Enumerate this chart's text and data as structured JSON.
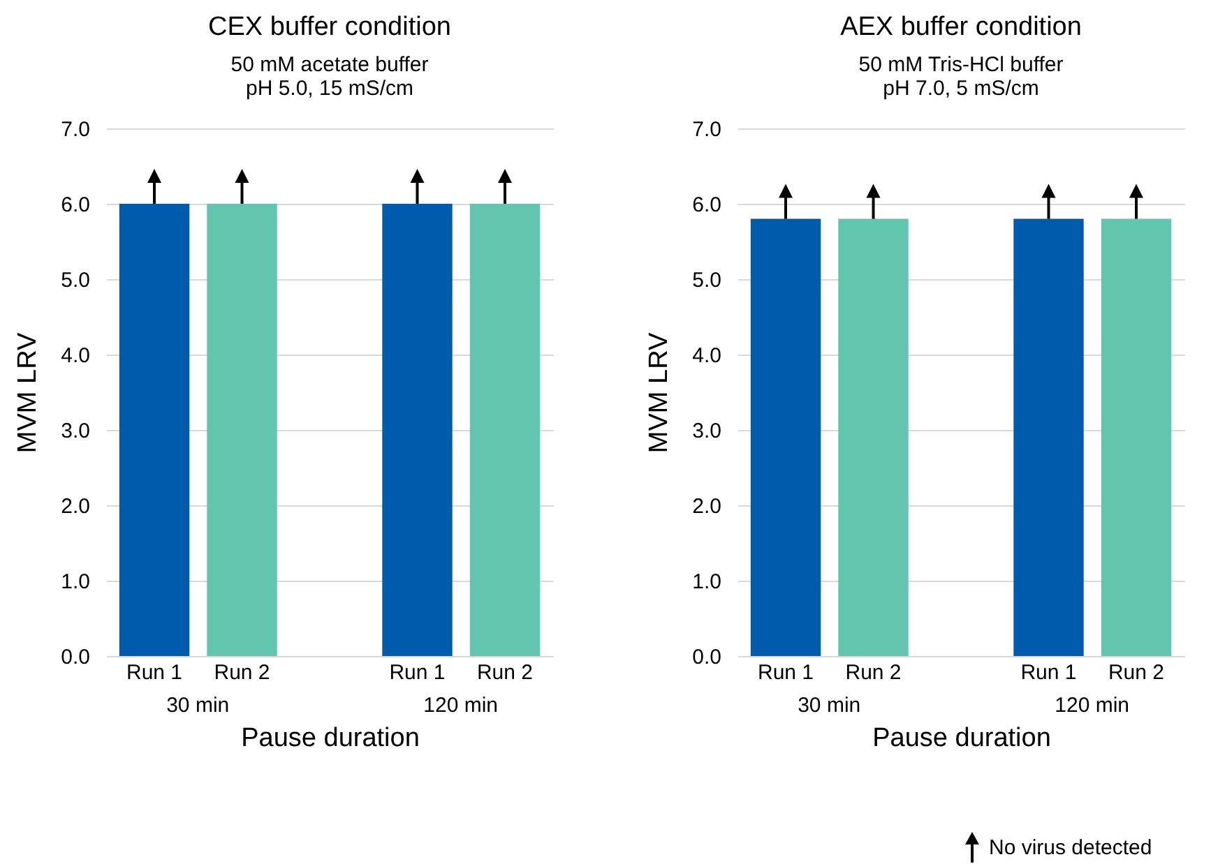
{
  "chart_data": [
    {
      "type": "bar",
      "title": "CEX buffer condition",
      "subtitle": "50 mM acetate buffer\npH 5.0, 15 mS/cm",
      "xlabel": "Pause duration",
      "ylabel": "MVM LRV",
      "categories": [
        "Run 1",
        "Run 2",
        "Run 1",
        "Run 2"
      ],
      "values": [
        6.0,
        6.0,
        6.0,
        6.0
      ],
      "colors": [
        "#005bac",
        "#62c5ae",
        "#005bac",
        "#62c5ae"
      ],
      "ylim": [
        0,
        7
      ],
      "yticks": [
        {
          "value": 0,
          "label": "0.0"
        },
        {
          "value": 1,
          "label": "1.0"
        },
        {
          "value": 2,
          "label": "2.0"
        },
        {
          "value": 3,
          "label": "3.0"
        },
        {
          "value": 4,
          "label": "4.0"
        },
        {
          "value": 5,
          "label": "5.0"
        },
        {
          "value": 6,
          "label": "6.0"
        },
        {
          "value": 7,
          "label": "7.0"
        }
      ],
      "grid": "y",
      "annotations": [
        "30 min",
        "120 min"
      ]
    },
    {
      "type": "bar",
      "title": "AEX buffer condition",
      "subtitle": "50 mM Tris-HCl buffer\npH 7.0, 5 mS/cm",
      "xlabel": "Pause duration",
      "ylabel": "MVM LRV",
      "categories": [
        "Run 1",
        "Run 2",
        "Run 1",
        "Run 2"
      ],
      "values": [
        5.8,
        5.8,
        5.8,
        5.8
      ],
      "colors": [
        "#005bac",
        "#62c5ae",
        "#005bac",
        "#62c5ae"
      ],
      "ylim": [
        0,
        7
      ],
      "yticks": [
        {
          "value": 0,
          "label": "0.0"
        },
        {
          "value": 1,
          "label": "1.0"
        },
        {
          "value": 2,
          "label": "2.0"
        },
        {
          "value": 3,
          "label": "3.0"
        },
        {
          "value": 4,
          "label": "4.0"
        },
        {
          "value": 5,
          "label": "5.0"
        },
        {
          "value": 6,
          "label": "6.0"
        },
        {
          "value": 7,
          "label": "7.0"
        }
      ],
      "grid": "y",
      "annotations": [
        "30 min",
        "120 min",
        "No virus detected"
      ]
    }
  ]
}
